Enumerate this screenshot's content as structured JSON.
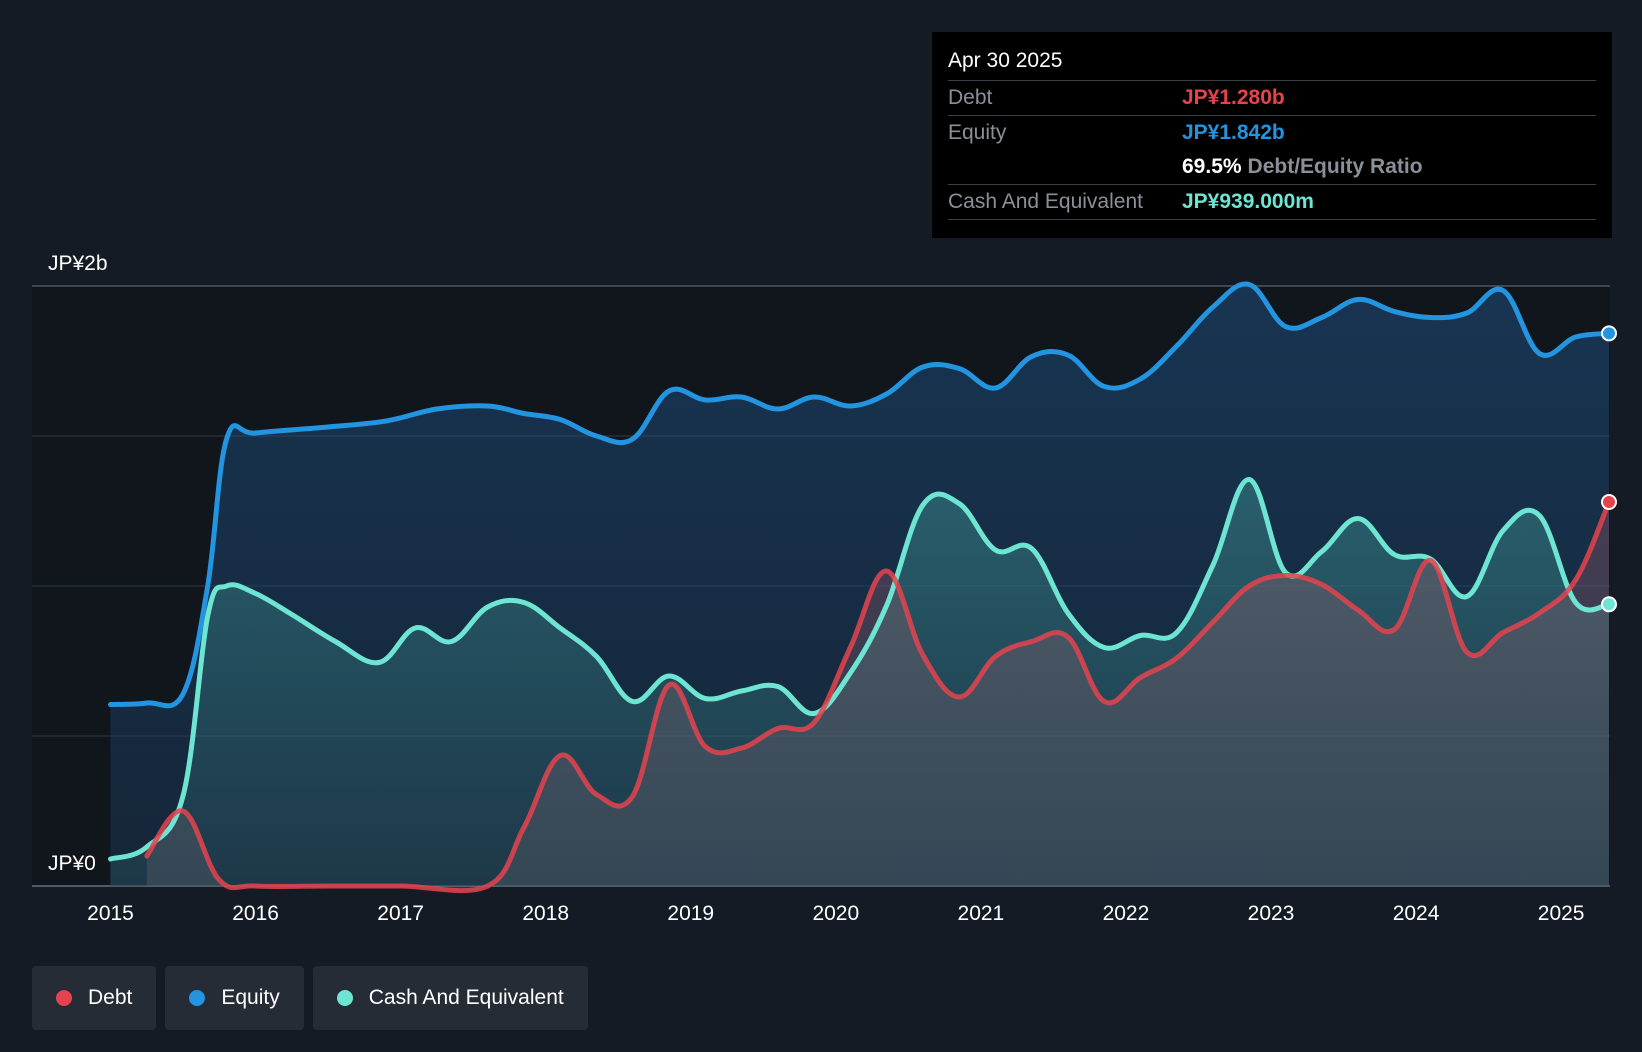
{
  "colors": {
    "debt": "#e5434d",
    "equity": "#2394df",
    "cash": "#6ee5d3",
    "background": "#151b24",
    "plot_background": "#11151c",
    "grid": "#2b3442",
    "axis_text": "#ffffff"
  },
  "tooltip": {
    "date": "Apr 30 2025",
    "debt_label": "Debt",
    "debt_value": "JP¥1.280b",
    "equity_label": "Equity",
    "equity_value": "JP¥1.842b",
    "ratio_value": "69.5%",
    "ratio_label": "Debt/Equity Ratio",
    "cash_label": "Cash And Equivalent",
    "cash_value": "JP¥939.000m"
  },
  "legend": [
    {
      "label": "Debt",
      "color_key": "debt"
    },
    {
      "label": "Equity",
      "color_key": "equity"
    },
    {
      "label": "Cash And Equivalent",
      "color_key": "cash"
    }
  ],
  "chart_data": {
    "type": "area",
    "title": "",
    "xlabel": "",
    "ylabel": "",
    "ylim": [
      0,
      2000
    ],
    "y_unit": "JP¥ millions",
    "y_tick_labels": [
      {
        "value": 2000,
        "label": "JP¥2b"
      },
      {
        "value": 0,
        "label": "JP¥0"
      }
    ],
    "y_gridlines": [
      0,
      500,
      1000,
      1500,
      2000
    ],
    "x_range": [
      2014.9,
      2025.33
    ],
    "x_ticks": [
      {
        "value": 2015,
        "label": "2015"
      },
      {
        "value": 2016,
        "label": "2016"
      },
      {
        "value": 2017,
        "label": "2017"
      },
      {
        "value": 2018,
        "label": "2018"
      },
      {
        "value": 2019,
        "label": "2019"
      },
      {
        "value": 2020,
        "label": "2020"
      },
      {
        "value": 2021,
        "label": "2021"
      },
      {
        "value": 2022,
        "label": "2022"
      },
      {
        "value": 2023,
        "label": "2023"
      },
      {
        "value": 2024,
        "label": "2024"
      },
      {
        "value": 2025,
        "label": "2025"
      }
    ],
    "series": [
      {
        "name": "Equity",
        "color_key": "equity",
        "points": [
          [
            2015.0,
            605
          ],
          [
            2015.25,
            610
          ],
          [
            2015.5,
            640
          ],
          [
            2015.67,
            1000
          ],
          [
            2015.8,
            1490
          ],
          [
            2016.0,
            1510
          ],
          [
            2016.5,
            1530
          ],
          [
            2016.9,
            1550
          ],
          [
            2017.25,
            1590
          ],
          [
            2017.6,
            1600
          ],
          [
            2017.85,
            1575
          ],
          [
            2018.1,
            1555
          ],
          [
            2018.35,
            1500
          ],
          [
            2018.6,
            1490
          ],
          [
            2018.85,
            1650
          ],
          [
            2019.1,
            1620
          ],
          [
            2019.35,
            1630
          ],
          [
            2019.6,
            1590
          ],
          [
            2019.85,
            1630
          ],
          [
            2020.1,
            1600
          ],
          [
            2020.35,
            1640
          ],
          [
            2020.6,
            1730
          ],
          [
            2020.85,
            1725
          ],
          [
            2021.1,
            1660
          ],
          [
            2021.35,
            1765
          ],
          [
            2021.6,
            1770
          ],
          [
            2021.85,
            1665
          ],
          [
            2022.1,
            1690
          ],
          [
            2022.35,
            1800
          ],
          [
            2022.6,
            1930
          ],
          [
            2022.85,
            2005
          ],
          [
            2023.1,
            1865
          ],
          [
            2023.35,
            1895
          ],
          [
            2023.6,
            1955
          ],
          [
            2023.85,
            1915
          ],
          [
            2024.1,
            1895
          ],
          [
            2024.35,
            1910
          ],
          [
            2024.6,
            1985
          ],
          [
            2024.85,
            1775
          ],
          [
            2025.1,
            1830
          ],
          [
            2025.33,
            1842
          ]
        ]
      },
      {
        "name": "Cash And Equivalent",
        "color_key": "cash",
        "points": [
          [
            2015.0,
            90
          ],
          [
            2015.25,
            130
          ],
          [
            2015.5,
            300
          ],
          [
            2015.67,
            900
          ],
          [
            2015.8,
            1000
          ],
          [
            2016.0,
            975
          ],
          [
            2016.25,
            905
          ],
          [
            2016.55,
            815
          ],
          [
            2016.85,
            745
          ],
          [
            2017.1,
            860
          ],
          [
            2017.35,
            815
          ],
          [
            2017.6,
            930
          ],
          [
            2017.85,
            945
          ],
          [
            2018.1,
            860
          ],
          [
            2018.35,
            765
          ],
          [
            2018.6,
            615
          ],
          [
            2018.85,
            700
          ],
          [
            2019.1,
            625
          ],
          [
            2019.35,
            650
          ],
          [
            2019.6,
            665
          ],
          [
            2019.85,
            575
          ],
          [
            2020.1,
            710
          ],
          [
            2020.35,
            935
          ],
          [
            2020.6,
            1270
          ],
          [
            2020.85,
            1275
          ],
          [
            2021.1,
            1120
          ],
          [
            2021.35,
            1125
          ],
          [
            2021.6,
            910
          ],
          [
            2021.85,
            795
          ],
          [
            2022.1,
            835
          ],
          [
            2022.35,
            845
          ],
          [
            2022.6,
            1070
          ],
          [
            2022.85,
            1355
          ],
          [
            2023.1,
            1045
          ],
          [
            2023.35,
            1115
          ],
          [
            2023.6,
            1225
          ],
          [
            2023.85,
            1105
          ],
          [
            2024.1,
            1090
          ],
          [
            2024.35,
            965
          ],
          [
            2024.6,
            1185
          ],
          [
            2024.85,
            1235
          ],
          [
            2025.1,
            945
          ],
          [
            2025.33,
            939
          ]
        ]
      },
      {
        "name": "Debt",
        "color_key": "debt",
        "points": [
          [
            2015.25,
            100
          ],
          [
            2015.5,
            250
          ],
          [
            2015.75,
            20
          ],
          [
            2016.0,
            0
          ],
          [
            2016.5,
            0
          ],
          [
            2017.0,
            0
          ],
          [
            2017.6,
            0
          ],
          [
            2017.85,
            195
          ],
          [
            2018.1,
            435
          ],
          [
            2018.35,
            305
          ],
          [
            2018.6,
            300
          ],
          [
            2018.85,
            670
          ],
          [
            2019.1,
            465
          ],
          [
            2019.35,
            460
          ],
          [
            2019.6,
            525
          ],
          [
            2019.85,
            545
          ],
          [
            2020.1,
            795
          ],
          [
            2020.35,
            1050
          ],
          [
            2020.6,
            770
          ],
          [
            2020.85,
            630
          ],
          [
            2021.1,
            765
          ],
          [
            2021.35,
            815
          ],
          [
            2021.6,
            830
          ],
          [
            2021.85,
            615
          ],
          [
            2022.1,
            695
          ],
          [
            2022.35,
            760
          ],
          [
            2022.6,
            880
          ],
          [
            2022.85,
            1000
          ],
          [
            2023.1,
            1035
          ],
          [
            2023.35,
            1005
          ],
          [
            2023.6,
            920
          ],
          [
            2023.85,
            855
          ],
          [
            2024.1,
            1085
          ],
          [
            2024.35,
            780
          ],
          [
            2024.6,
            845
          ],
          [
            2024.85,
            910
          ],
          [
            2025.1,
            1020
          ],
          [
            2025.33,
            1280
          ]
        ]
      }
    ]
  }
}
